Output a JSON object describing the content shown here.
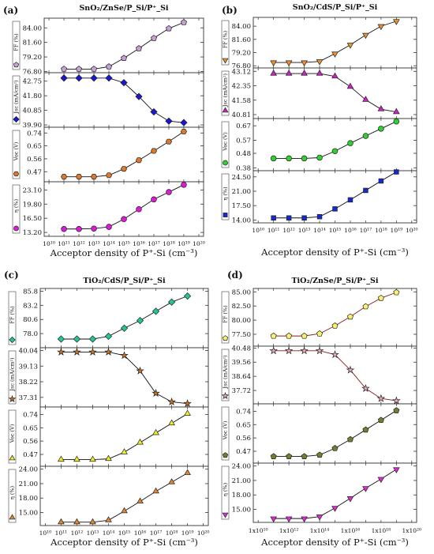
{
  "x_axis_label": "Acceptor density of P⁺-Si (cm⁻³)",
  "chart_data": [
    {
      "panel_label": "(a)",
      "title": "SnO₂/ZnSe/P_Si/P⁺_Si",
      "type": "line",
      "x_tick_style": "power",
      "x_ticks": [
        "10¹⁰",
        "10¹¹",
        "10¹²",
        "10¹³",
        "10¹⁴",
        "10¹⁵",
        "10¹⁶",
        "10¹⁷",
        "10¹⁸",
        "10¹⁹",
        "10²⁰"
      ],
      "x": [
        100000000000.0,
        1000000000000.0,
        10000000000000.0,
        100000000000000.0,
        1000000000000000.0,
        1e+16,
        1e+17,
        1e+18,
        1e+19
      ],
      "xlim": [
        10000000000.0,
        1e+20
      ],
      "series": [
        {
          "ylabel": "FF (%)",
          "marker": "pentagon",
          "color": "#c9a0d6",
          "yticks": [
            "76.80",
            "79.20",
            "81.60",
            "84.00"
          ],
          "ylim": [
            76.6,
            85.6
          ],
          "values": [
            77.2,
            77.2,
            77.2,
            77.6,
            79.0,
            80.6,
            82.3,
            83.9,
            84.9
          ]
        },
        {
          "ylabel": "Jsc (mA/cm²)",
          "marker": "diamond",
          "color": "#1818d0",
          "yticks": [
            "39.90",
            "40.85",
            "41.80",
            "42.75"
          ],
          "ylim": [
            39.75,
            43.3
          ],
          "values": [
            42.95,
            42.95,
            42.95,
            42.95,
            42.65,
            41.75,
            40.75,
            40.15,
            40.05
          ]
        },
        {
          "ylabel": "Voc (V)",
          "marker": "hexagon",
          "color": "#e07a2a",
          "yticks": [
            "0.47",
            "0.56",
            "0.65",
            "0.74"
          ],
          "ylim": [
            0.4,
            0.78
          ],
          "values": [
            0.435,
            0.435,
            0.435,
            0.445,
            0.49,
            0.55,
            0.615,
            0.68,
            0.75
          ]
        },
        {
          "ylabel": "η (%)",
          "marker": "circle",
          "color": "#e018d8",
          "yticks": [
            "13.20",
            "16.50",
            "19.80",
            "23.10"
          ],
          "ylim": [
            12.3,
            25.0
          ],
          "values": [
            14.0,
            14.0,
            14.1,
            14.5,
            16.3,
            18.6,
            20.9,
            22.6,
            24.3
          ]
        }
      ]
    },
    {
      "panel_label": "(b)",
      "title": "SnO₂/CdS/P_Si/P⁺_Si",
      "type": "line",
      "x_tick_style": "power",
      "x_ticks": [
        "10¹⁰",
        "10¹¹",
        "10¹²",
        "10¹³",
        "10¹⁴",
        "10¹⁵",
        "10¹⁶",
        "10¹⁷",
        "10¹⁸",
        "10¹⁹",
        "10²⁰"
      ],
      "x": [
        100000000000.0,
        1000000000000.0,
        10000000000000.0,
        100000000000000.0,
        1000000000000000.0,
        1e+16,
        1e+17,
        1e+18,
        1e+19
      ],
      "xlim": [
        10000000000.0,
        1e+20
      ],
      "series": [
        {
          "ylabel": "FF (%)",
          "marker": "triangle-down",
          "color": "#f09030",
          "yticks": [
            "76.80",
            "79.20",
            "81.60",
            "84.00"
          ],
          "ylim": [
            76.4,
            85.6
          ],
          "values": [
            77.4,
            77.4,
            77.4,
            77.6,
            79.0,
            80.6,
            82.4,
            84.0,
            84.9
          ]
        },
        {
          "ylabel": "Jsc (mA/cm²)",
          "marker": "triangle-up",
          "color": "#d020c8",
          "yticks": [
            "40.81",
            "41.58",
            "42.35",
            "43.12"
          ],
          "ylim": [
            40.6,
            43.3
          ],
          "values": [
            43.0,
            43.0,
            43.0,
            43.0,
            42.85,
            42.3,
            41.6,
            41.1,
            40.95
          ]
        },
        {
          "ylabel": "Voc (V)",
          "marker": "circle",
          "color": "#30d030",
          "yticks": [
            "0.38",
            "0.48",
            "0.57",
            "0.67"
          ],
          "ylim": [
            0.36,
            0.72
          ],
          "values": [
            0.445,
            0.445,
            0.445,
            0.45,
            0.495,
            0.55,
            0.6,
            0.65,
            0.7
          ]
        },
        {
          "ylabel": "η (%)",
          "marker": "square",
          "color": "#1828d0",
          "yticks": [
            "14.00",
            "17.50",
            "21.00",
            "24.50"
          ],
          "ylim": [
            13.3,
            26.0
          ],
          "values": [
            14.5,
            14.5,
            14.5,
            14.8,
            16.7,
            18.9,
            21.2,
            23.5,
            25.7
          ]
        }
      ]
    },
    {
      "panel_label": "(c)",
      "title": "TiO₂/CdS/P_Si/P⁺_Si",
      "type": "line",
      "x_tick_style": "power",
      "x_ticks": [
        "10¹⁰",
        "10¹¹",
        "10¹²",
        "10¹³",
        "10¹⁴",
        "10¹⁵",
        "10¹⁶",
        "10¹⁷",
        "10¹⁸",
        "10¹⁹",
        "10²⁰"
      ],
      "x": [
        100000000000.0,
        1000000000000.0,
        10000000000000.0,
        100000000000000.0,
        1000000000000000.0,
        1e+16,
        1e+17,
        1e+18,
        1e+19
      ],
      "xlim": [
        10000000000.0,
        1e+20
      ],
      "series": [
        {
          "ylabel": "FF (%)",
          "marker": "diamond",
          "color": "#20c890",
          "yticks": [
            "78.0",
            "80.6",
            "83.2",
            "85.8"
          ],
          "ylim": [
            75.4,
            86.3
          ],
          "values": [
            77.0,
            77.0,
            77.0,
            77.5,
            79.0,
            80.4,
            82.1,
            83.8,
            84.9
          ]
        },
        {
          "ylabel": "Jsc (mA/cm²)",
          "marker": "star",
          "color": "#c87020",
          "yticks": [
            "37.31",
            "38.22",
            "39.13",
            "40.04"
          ],
          "ylim": [
            36.75,
            40.2
          ],
          "values": [
            39.95,
            39.95,
            39.95,
            39.95,
            39.75,
            38.85,
            37.55,
            37.05,
            36.95
          ]
        },
        {
          "ylabel": "Voc (V)",
          "marker": "triangle-up",
          "color": "#f0f020",
          "yticks": [
            "0.47",
            "0.56",
            "0.65",
            "0.74"
          ],
          "ylim": [
            0.39,
            0.79
          ],
          "values": [
            0.435,
            0.435,
            0.435,
            0.44,
            0.485,
            0.55,
            0.615,
            0.68,
            0.745
          ]
        },
        {
          "ylabel": "η (%)",
          "marker": "triangle-up",
          "color": "#e08830",
          "yticks": [
            "15.00",
            "18.00",
            "21.00",
            "24.00"
          ],
          "ylim": [
            12.3,
            24.6
          ],
          "values": [
            13.0,
            13.0,
            13.0,
            13.4,
            15.3,
            17.3,
            19.4,
            21.3,
            23.2
          ]
        }
      ]
    },
    {
      "panel_label": "(d)",
      "title": "TiO₂/ZnSe/P_Si/P⁺_Si",
      "type": "line",
      "x_tick_style": "mantissa",
      "x_ticks": [
        "1x10¹⁰",
        "1x10¹²",
        "1x10¹⁴",
        "1x10¹⁶",
        "1x10¹⁸",
        "1x10²⁰"
      ],
      "x": [
        100000000000.0,
        1000000000000.0,
        10000000000000.0,
        100000000000000.0,
        1000000000000000.0,
        1e+16,
        1e+17,
        1e+18,
        1e+19
      ],
      "xlim": [
        10000000000.0,
        1e+20
      ],
      "series": [
        {
          "ylabel": "FF (%)",
          "marker": "pentagon",
          "color": "#f8f070",
          "yticks": [
            "77.50",
            "80.00",
            "82.50",
            "85.00"
          ],
          "ylim": [
            75.4,
            85.6
          ],
          "values": [
            77.2,
            77.2,
            77.2,
            77.6,
            79.0,
            80.6,
            82.4,
            83.9,
            84.9
          ]
        },
        {
          "ylabel": "Jsc (mA/cm²)",
          "marker": "star",
          "color": "#e8a8c0",
          "yticks": [
            "37.72",
            "38.64",
            "39.56",
            "40.48"
          ],
          "ylim": [
            36.85,
            40.6
          ],
          "values": [
            40.3,
            40.3,
            40.3,
            40.3,
            40.05,
            39.05,
            37.85,
            37.2,
            37.05
          ]
        },
        {
          "ylabel": "Voc (V)",
          "marker": "pentagon",
          "color": "#708030",
          "yticks": [
            "0.47",
            "0.56",
            "0.65",
            "0.74"
          ],
          "ylim": [
            0.39,
            0.79
          ],
          "values": [
            0.435,
            0.435,
            0.435,
            0.445,
            0.49,
            0.55,
            0.615,
            0.68,
            0.745
          ]
        },
        {
          "ylabel": "η (%)",
          "marker": "triangle-down",
          "color": "#e028d8",
          "yticks": [
            "15.00",
            "18.00",
            "21.00",
            "24.00"
          ],
          "ylim": [
            12.3,
            24.6
          ],
          "values": [
            13.1,
            13.1,
            13.1,
            13.5,
            15.3,
            17.3,
            19.4,
            21.3,
            23.3
          ]
        }
      ]
    }
  ]
}
